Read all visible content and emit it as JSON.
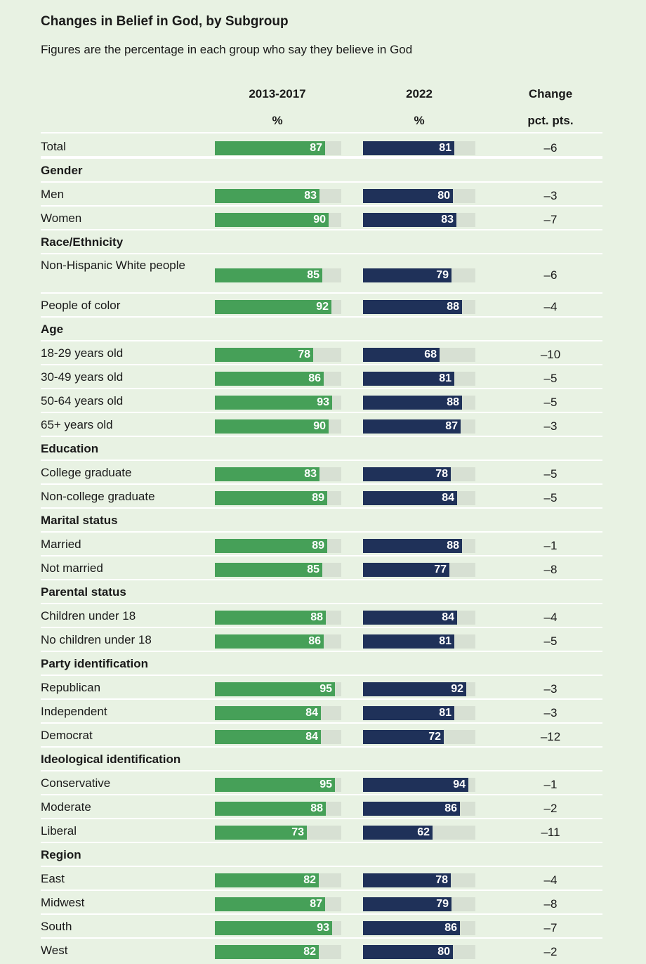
{
  "chart_data": {
    "type": "bar",
    "title": "Changes in Belief in God, by Subgroup",
    "subtitle": "Figures are the percentage in each group who say they believe in God",
    "columns": [
      {
        "name": "2013-2017",
        "unit": "%"
      },
      {
        "name": "2022",
        "unit": "%"
      },
      {
        "name": "Change",
        "unit": "pct. pts."
      }
    ],
    "xlim": [
      0,
      100
    ],
    "colors": {
      "period1": "#46a058",
      "period2": "#1f3159",
      "track": "#d7e0d3"
    },
    "rows": [
      {
        "kind": "item",
        "label": "Total",
        "v1": 87,
        "v2": 81,
        "change": "–6"
      },
      {
        "kind": "section",
        "label": "Gender"
      },
      {
        "kind": "item",
        "label": "Men",
        "v1": 83,
        "v2": 80,
        "change": "–3"
      },
      {
        "kind": "item",
        "label": "Women",
        "v1": 90,
        "v2": 83,
        "change": "–7"
      },
      {
        "kind": "section",
        "label": "Race/Ethnicity"
      },
      {
        "kind": "item",
        "label": "Non-Hispanic White people",
        "v1": 85,
        "v2": 79,
        "change": "–6"
      },
      {
        "kind": "item",
        "label": "People of color",
        "v1": 92,
        "v2": 88,
        "change": "–4"
      },
      {
        "kind": "section",
        "label": "Age"
      },
      {
        "kind": "item",
        "label": "18-29 years old",
        "v1": 78,
        "v2": 68,
        "change": "–10"
      },
      {
        "kind": "item",
        "label": "30-49 years old",
        "v1": 86,
        "v2": 81,
        "change": "–5"
      },
      {
        "kind": "item",
        "label": "50-64 years old",
        "v1": 93,
        "v2": 88,
        "change": "–5"
      },
      {
        "kind": "item",
        "label": "65+ years old",
        "v1": 90,
        "v2": 87,
        "change": "–3"
      },
      {
        "kind": "section",
        "label": "Education"
      },
      {
        "kind": "item",
        "label": "College graduate",
        "v1": 83,
        "v2": 78,
        "change": "–5"
      },
      {
        "kind": "item",
        "label": "Non-college graduate",
        "v1": 89,
        "v2": 84,
        "change": "–5"
      },
      {
        "kind": "section",
        "label": "Marital status"
      },
      {
        "kind": "item",
        "label": "Married",
        "v1": 89,
        "v2": 88,
        "change": "–1"
      },
      {
        "kind": "item",
        "label": "Not married",
        "v1": 85,
        "v2": 77,
        "change": "–8"
      },
      {
        "kind": "section",
        "label": "Parental status"
      },
      {
        "kind": "item",
        "label": "Children under 18",
        "v1": 88,
        "v2": 84,
        "change": "–4"
      },
      {
        "kind": "item",
        "label": "No children under 18",
        "v1": 86,
        "v2": 81,
        "change": "–5"
      },
      {
        "kind": "section",
        "label": "Party identification"
      },
      {
        "kind": "item",
        "label": "Republican",
        "v1": 95,
        "v2": 92,
        "change": "–3"
      },
      {
        "kind": "item",
        "label": "Independent",
        "v1": 84,
        "v2": 81,
        "change": "–3"
      },
      {
        "kind": "item",
        "label": "Democrat",
        "v1": 84,
        "v2": 72,
        "change": "–12"
      },
      {
        "kind": "section",
        "label": "Ideological identification"
      },
      {
        "kind": "item",
        "label": "Conservative",
        "v1": 95,
        "v2": 94,
        "change": "–1"
      },
      {
        "kind": "item",
        "label": "Moderate",
        "v1": 88,
        "v2": 86,
        "change": "–2"
      },
      {
        "kind": "item",
        "label": "Liberal",
        "v1": 73,
        "v2": 62,
        "change": "–11"
      },
      {
        "kind": "section",
        "label": "Region"
      },
      {
        "kind": "item",
        "label": "East",
        "v1": 82,
        "v2": 78,
        "change": "–4"
      },
      {
        "kind": "item",
        "label": "Midwest",
        "v1": 87,
        "v2": 79,
        "change": "–8"
      },
      {
        "kind": "item",
        "label": "South",
        "v1": 93,
        "v2": 86,
        "change": "–7"
      },
      {
        "kind": "item",
        "label": "West",
        "v1": 82,
        "v2": 80,
        "change": "–2"
      }
    ]
  }
}
